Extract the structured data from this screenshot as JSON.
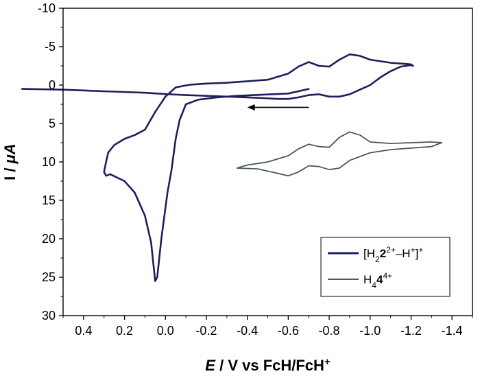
{
  "chart_data": {
    "type": "line",
    "xlabel": {
      "italic": "E",
      "rest": " / V vs FcH/FcH",
      "sup": "+"
    },
    "ylabel": {
      "main": "I / ",
      "mu": "μ",
      "tail": "A"
    },
    "xlim": [
      0.5,
      -1.5
    ],
    "ylim": [
      -10,
      30
    ],
    "y_inverted": true,
    "x_reversed": true,
    "xticks": [
      0.4,
      0.2,
      0.0,
      -0.2,
      -0.4,
      -0.6,
      -0.8,
      -1.0,
      -1.2,
      -1.4
    ],
    "xtick_labels": [
      "0.4",
      "0.2",
      "0.0",
      "-0.2",
      "-0.4",
      "-0.6",
      "-0.8",
      "-1.0",
      "-1.2",
      "-1.4"
    ],
    "yticks": [
      -10,
      -5,
      0,
      5,
      10,
      15,
      20,
      25,
      30
    ],
    "ytick_labels": [
      "-10",
      "-5",
      "0",
      "5",
      "10",
      "15",
      "20",
      "25",
      "30"
    ],
    "legend_position": "bottom-right",
    "annotation": {
      "type": "arrow",
      "direction": "left",
      "from": [
        -0.7,
        2.9
      ],
      "to": [
        -0.4,
        2.9
      ]
    },
    "series": [
      {
        "name": "[H22<sup>2+</sup>–H+]+",
        "legend_parts": {
          "a": "[H",
          "b": "2",
          "c": "2",
          "d": "2+",
          "e": "–H",
          "f": "+",
          "g": "]",
          "h": "+"
        },
        "color": "#1c1f5c",
        "points": [
          [
            0.7,
            0.5
          ],
          [
            0.5,
            0.6
          ],
          [
            0.3,
            0.8
          ],
          [
            0.1,
            1.0
          ],
          [
            -0.02,
            1.2
          ],
          [
            -0.1,
            1.3
          ],
          [
            -0.2,
            1.4
          ],
          [
            -0.3,
            1.5
          ],
          [
            -0.4,
            1.6
          ],
          [
            -0.48,
            1.7
          ],
          [
            -0.55,
            1.8
          ],
          [
            -0.6,
            1.8
          ],
          [
            -0.65,
            1.6
          ],
          [
            -0.7,
            1.3
          ],
          [
            -0.75,
            1.2
          ],
          [
            -0.8,
            1.5
          ],
          [
            -0.85,
            1.5
          ],
          [
            -0.9,
            1.2
          ],
          [
            -0.95,
            0.6
          ],
          [
            -1.0,
            0.0
          ],
          [
            -1.05,
            -1.0
          ],
          [
            -1.1,
            -1.8
          ],
          [
            -1.15,
            -2.4
          ],
          [
            -1.2,
            -2.6
          ],
          [
            -1.21,
            -2.5
          ],
          [
            -1.2,
            -2.7
          ],
          [
            -1.1,
            -2.9
          ],
          [
            -1.0,
            -3.3
          ],
          [
            -0.95,
            -3.8
          ],
          [
            -0.9,
            -4.0
          ],
          [
            -0.85,
            -3.3
          ],
          [
            -0.8,
            -2.4
          ],
          [
            -0.75,
            -2.5
          ],
          [
            -0.7,
            -3.0
          ],
          [
            -0.65,
            -2.4
          ],
          [
            -0.6,
            -1.5
          ],
          [
            -0.5,
            -0.7
          ],
          [
            -0.4,
            -0.5
          ],
          [
            -0.3,
            -0.3
          ],
          [
            -0.2,
            -0.2
          ],
          [
            -0.12,
            -0.05
          ],
          [
            -0.05,
            0.3
          ],
          [
            0.0,
            1.5
          ],
          [
            0.05,
            3.5
          ],
          [
            0.1,
            5.8
          ],
          [
            0.15,
            6.5
          ],
          [
            0.2,
            7.0
          ],
          [
            0.25,
            7.8
          ],
          [
            0.28,
            8.8
          ],
          [
            0.29,
            10.0
          ],
          [
            0.3,
            11.3
          ],
          [
            0.29,
            11.8
          ],
          [
            0.27,
            11.6
          ],
          [
            0.2,
            12.5
          ],
          [
            0.15,
            14.0
          ],
          [
            0.1,
            17.0
          ],
          [
            0.07,
            20.5
          ],
          [
            0.05,
            25.5
          ],
          [
            0.04,
            25.0
          ],
          [
            0.02,
            20.0
          ],
          [
            -0.01,
            14.0
          ],
          [
            -0.03,
            11.0
          ],
          [
            -0.05,
            7.0
          ],
          [
            -0.07,
            4.5
          ],
          [
            -0.1,
            2.5
          ],
          [
            -0.16,
            1.9
          ],
          [
            -0.25,
            1.6
          ],
          [
            -0.35,
            1.4
          ],
          [
            -0.6,
            1.1
          ],
          [
            -0.7,
            0.5
          ]
        ]
      },
      {
        "name": "H44<sup>4+</sup>",
        "legend_parts": {
          "a": "H",
          "b": "4",
          "c": "4",
          "d": "4+"
        },
        "color": "#4a5858",
        "points": [
          [
            -0.35,
            10.8
          ],
          [
            -0.45,
            10.9
          ],
          [
            -0.55,
            11.5
          ],
          [
            -0.6,
            11.8
          ],
          [
            -0.65,
            11.3
          ],
          [
            -0.7,
            10.5
          ],
          [
            -0.75,
            10.6
          ],
          [
            -0.8,
            11.0
          ],
          [
            -0.85,
            10.8
          ],
          [
            -0.9,
            9.8
          ],
          [
            -1.0,
            8.8
          ],
          [
            -1.1,
            8.4
          ],
          [
            -1.2,
            8.2
          ],
          [
            -1.3,
            8.0
          ],
          [
            -1.35,
            7.5
          ],
          [
            -1.3,
            7.4
          ],
          [
            -1.2,
            7.5
          ],
          [
            -1.1,
            7.6
          ],
          [
            -1.0,
            7.4
          ],
          [
            -0.95,
            6.5
          ],
          [
            -0.9,
            6.1
          ],
          [
            -0.85,
            6.8
          ],
          [
            -0.8,
            8.1
          ],
          [
            -0.75,
            8.0
          ],
          [
            -0.7,
            7.7
          ],
          [
            -0.65,
            8.3
          ],
          [
            -0.6,
            9.2
          ],
          [
            -0.5,
            10.0
          ],
          [
            -0.4,
            10.4
          ],
          [
            -0.35,
            10.8
          ]
        ]
      }
    ]
  }
}
